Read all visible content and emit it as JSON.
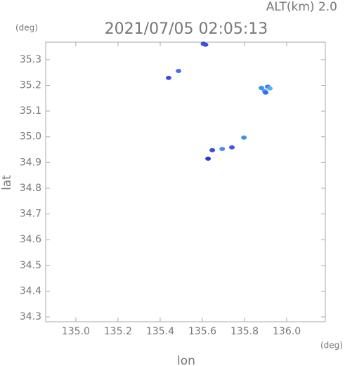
{
  "chart_data": {
    "type": "scatter",
    "title": "2021/07/05 02:05:13",
    "subtitle": "ALT(km) 2.0",
    "x_label": "lon",
    "y_label": "lat",
    "x_unit": "(deg)",
    "y_unit": "(deg)",
    "x": [
      135.605,
      135.615,
      135.44,
      135.487,
      135.88,
      135.895,
      135.91,
      135.92,
      135.9,
      135.797,
      135.694,
      135.647,
      135.74,
      135.627
    ],
    "y": [
      35.362,
      35.358,
      35.229,
      35.256,
      35.19,
      35.178,
      35.195,
      35.188,
      35.172,
      34.997,
      34.953,
      34.948,
      34.959,
      34.915
    ],
    "colors": [
      "#3a4fe0",
      "#3a4fe0",
      "#3a4fe0",
      "#4a6cf0",
      "#3f8ef0",
      "#4aa8f5",
      "#3a7ff0",
      "#5ab0f5",
      "#3a6ae8",
      "#3f8ef0",
      "#4a8cf0",
      "#3a4fe0",
      "#3a5ae8",
      "#2a3ad0"
    ],
    "xlim": [
      134.857,
      136.183
    ],
    "ylim": [
      34.281,
      35.368
    ],
    "xticks": [
      {
        "value": 135.0,
        "label": "135.0"
      },
      135.2,
      135.4,
      135.6,
      135.8,
      {
        "value": 136.0,
        "label": "136.0"
      }
    ],
    "yticks": [
      35.3,
      35.2,
      35.1,
      {
        "value": 35.0,
        "label": "35.0"
      },
      34.9,
      34.8,
      34.7,
      34.6,
      34.5,
      34.4,
      34.3
    ]
  }
}
